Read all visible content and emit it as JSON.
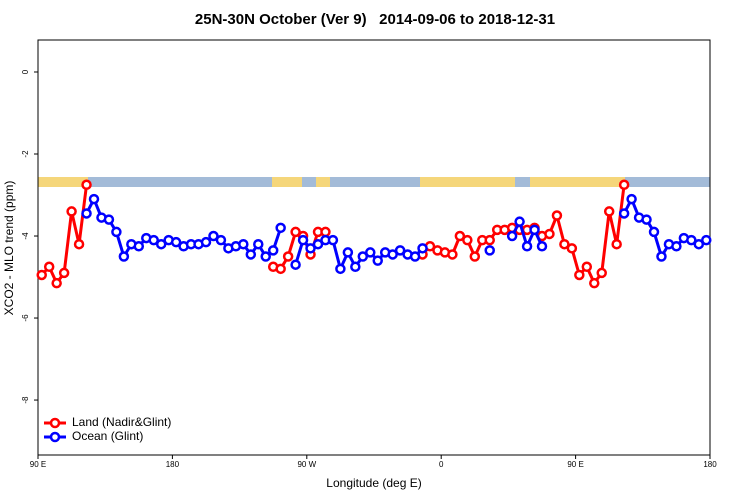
{
  "chart_data": {
    "type": "line",
    "title": "25N-30N October (Ver 9)   2014-09-06 to 2018-12-31",
    "xlabel": "Longitude (deg E)",
    "ylabel": "XCO2 - MLO trend (ppm)",
    "x": [
      92.5,
      97.5,
      102.5,
      107.5,
      112.5,
      117.5,
      122.5,
      127.5,
      132.5,
      137.5,
      142.5,
      147.5,
      152.5,
      157.5,
      162.5,
      167.5,
      172.5,
      177.5,
      182.5,
      187.5,
      192.5,
      197.5,
      202.5,
      207.5,
      212.5,
      217.5,
      222.5,
      227.5,
      232.5,
      237.5,
      242.5,
      247.5,
      252.5,
      257.5,
      262.5,
      267.5,
      272.5,
      277.5,
      282.5,
      287.5,
      292.5,
      297.5,
      302.5,
      307.5,
      312.5,
      317.5,
      322.5,
      327.5,
      332.5,
      337.5,
      342.5,
      347.5,
      352.5,
      357.5,
      362.5,
      367.5,
      372.5,
      377.5,
      382.5,
      387.5,
      392.5,
      397.5,
      402.5,
      407.5,
      412.5,
      417.5,
      422.5,
      427.5,
      432.5,
      437.5,
      442.5,
      447.5,
      452.5,
      457.5,
      462.5,
      467.5,
      472.5,
      477.5,
      482.5,
      487.5,
      492.5,
      497.5,
      502.5,
      507.5,
      512.5,
      517.5,
      522.5,
      527.5,
      532.5,
      537.5
    ],
    "series": [
      {
        "name": "Land (Nadir&Glint)",
        "color": "#ff0000",
        "values": [
          -4.95,
          -4.75,
          -5.15,
          -4.9,
          -3.4,
          -4.2,
          -2.75,
          null,
          null,
          null,
          null,
          null,
          null,
          null,
          null,
          null,
          null,
          null,
          null,
          null,
          null,
          null,
          null,
          null,
          null,
          null,
          null,
          null,
          null,
          null,
          null,
          -4.75,
          -4.8,
          -4.5,
          -3.9,
          -4.0,
          -4.45,
          -3.9,
          -3.9,
          null,
          null,
          null,
          null,
          null,
          null,
          null,
          null,
          null,
          null,
          null,
          null,
          -4.45,
          -4.25,
          -4.35,
          -4.4,
          -4.45,
          -4.0,
          -4.1,
          -4.5,
          -4.1,
          -4.1,
          -3.85,
          -3.85,
          -3.8,
          -3.85,
          -3.85,
          -3.8,
          -4.0,
          -3.95,
          -3.5,
          -4.2,
          -4.3,
          -4.95,
          -4.75,
          -5.15,
          -4.9,
          -3.4,
          -4.2,
          -2.75,
          null,
          null,
          null,
          null,
          null,
          null,
          null,
          null,
          null,
          null,
          null
        ]
      },
      {
        "name": "Ocean (Glint)",
        "color": "#0000ff",
        "values": [
          null,
          null,
          null,
          null,
          null,
          null,
          -3.45,
          -3.1,
          -3.55,
          -3.6,
          -3.9,
          -4.5,
          -4.2,
          -4.25,
          -4.05,
          -4.1,
          -4.2,
          -4.1,
          -4.15,
          -4.25,
          -4.2,
          -4.2,
          -4.15,
          -4.0,
          -4.1,
          -4.3,
          -4.25,
          -4.2,
          -4.45,
          -4.2,
          -4.5,
          -4.35,
          -3.8,
          null,
          -4.7,
          -4.1,
          -4.3,
          -4.2,
          -4.1,
          -4.1,
          -4.8,
          -4.4,
          -4.75,
          -4.5,
          -4.4,
          -4.6,
          -4.4,
          -4.45,
          -4.35,
          -4.45,
          -4.5,
          -4.3,
          null,
          null,
          null,
          null,
          null,
          null,
          null,
          null,
          -4.35,
          null,
          null,
          -4.0,
          -3.65,
          -4.25,
          -3.85,
          -4.25,
          null,
          null,
          null,
          null,
          null,
          null,
          null,
          null,
          null,
          null,
          -3.45,
          -3.1,
          -3.55,
          -3.6,
          -3.9,
          -4.5,
          -4.2,
          -4.25,
          -4.05,
          -4.1,
          -4.2,
          -4.1
        ]
      }
    ],
    "xlim": [
      90,
      540
    ],
    "xticks": [
      {
        "value": 90,
        "label": "90 E"
      },
      180,
      {
        "value": 270,
        "label": "90 W"
      },
      {
        "value": 360,
        "label": "0"
      },
      {
        "value": 450,
        "label": "90 E"
      },
      {
        "value": 540,
        "label": "180"
      }
    ],
    "ylim": [
      -9.34,
      0.78
    ],
    "yticks": [
      0,
      -2,
      -4,
      -6,
      -8
    ],
    "legend": "bottomleft"
  }
}
